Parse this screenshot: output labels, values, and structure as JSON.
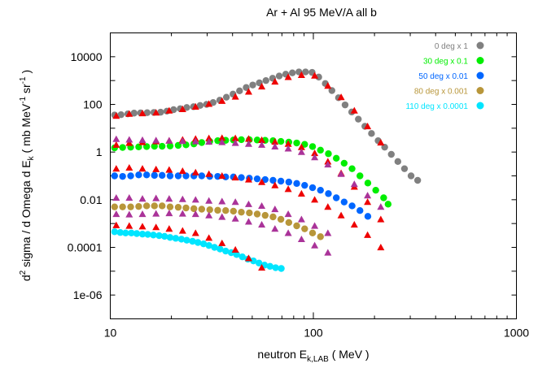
{
  "chart_data": {
    "type": "scatter",
    "title": "Ar + Al   95 MeV/A   all b",
    "xlabel": "neutron E_{k,LAB} ( MeV )",
    "ylabel": "d^2 sigma / d Omega d E_k  ( mb  MeV^-1 sr^-1 )",
    "x_scale": "log",
    "y_scale": "log",
    "xlim": [
      10,
      1000
    ],
    "ylim": [
      1e-07,
      100000
    ],
    "x_ticks": [
      "10",
      "100",
      "1000"
    ],
    "y_ticks": [
      "10000",
      "100",
      "1",
      "0.01",
      "0.0001",
      "1e-06"
    ],
    "legend_position": "top-right",
    "series": [
      {
        "name": "0 deg x 1",
        "color": "#808080",
        "marker": "circle",
        "points": [
          [
            10.5,
            36
          ],
          [
            11.3,
            37
          ],
          [
            12.2,
            40
          ],
          [
            13.1,
            43
          ],
          [
            14.1,
            44
          ],
          [
            15.2,
            45
          ],
          [
            16.4,
            46
          ],
          [
            17.7,
            47
          ],
          [
            19.0,
            52
          ],
          [
            20.5,
            60
          ],
          [
            22.1,
            66
          ],
          [
            23.8,
            74
          ],
          [
            25.7,
            80
          ],
          [
            27.7,
            90
          ],
          [
            29.8,
            100
          ],
          [
            32.1,
            120
          ],
          [
            34.6,
            150
          ],
          [
            37.3,
            200
          ],
          [
            40.2,
            270
          ],
          [
            43.3,
            370
          ],
          [
            46.7,
            510
          ],
          [
            50.3,
            650
          ],
          [
            54.2,
            800
          ],
          [
            58.4,
            1000
          ],
          [
            63.0,
            1250
          ],
          [
            67.9,
            1550
          ],
          [
            73.1,
            1850
          ],
          [
            78.8,
            2100
          ],
          [
            84.9,
            2300
          ],
          [
            91.5,
            2300
          ],
          [
            98.6,
            2200
          ],
          [
            106.3,
            1400
          ],
          [
            114.5,
            750
          ],
          [
            123.4,
            380
          ],
          [
            133.0,
            190
          ],
          [
            143.3,
            95
          ],
          [
            154.5,
            48
          ],
          [
            166.5,
            24
          ],
          [
            179.4,
            12
          ],
          [
            193.3,
            6
          ],
          [
            208.4,
            3
          ],
          [
            224.5,
            1.6
          ],
          [
            242.0,
            0.8
          ],
          [
            260.7,
            0.4
          ],
          [
            281.0,
            0.2
          ],
          [
            302.8,
            0.1
          ],
          [
            326.3,
            0.065
          ]
        ]
      },
      {
        "name": "30 deg x 0.1",
        "color": "#00ee00",
        "marker": "circle",
        "points": [
          [
            10.5,
            1.5
          ],
          [
            11.5,
            1.55
          ],
          [
            12.6,
            1.6
          ],
          [
            13.8,
            1.65
          ],
          [
            15.1,
            1.7
          ],
          [
            16.5,
            1.75
          ],
          [
            18.0,
            1.75
          ],
          [
            19.7,
            1.8
          ],
          [
            21.6,
            1.9
          ],
          [
            23.6,
            2.0
          ],
          [
            25.8,
            2.2
          ],
          [
            28.2,
            2.5
          ],
          [
            30.9,
            2.8
          ],
          [
            33.8,
            3.0
          ],
          [
            37.0,
            3.1
          ],
          [
            40.4,
            3.2
          ],
          [
            44.2,
            3.3
          ],
          [
            48.4,
            3.3
          ],
          [
            52.9,
            3.2
          ],
          [
            57.9,
            3.1
          ],
          [
            63.3,
            3.0
          ],
          [
            69.2,
            2.8
          ],
          [
            75.7,
            2.6
          ],
          [
            82.8,
            2.4
          ],
          [
            90.6,
            2.1
          ],
          [
            99.1,
            1.7
          ],
          [
            108.4,
            1.2
          ],
          [
            118.6,
            0.85
          ],
          [
            129.7,
            0.55
          ],
          [
            141.8,
            0.34
          ],
          [
            155.1,
            0.2
          ],
          [
            169.6,
            0.1
          ],
          [
            185.5,
            0.05
          ],
          [
            202.9,
            0.025
          ],
          [
            221.9,
            0.012
          ],
          [
            233.4,
            0.0065
          ]
        ]
      },
      {
        "name": "50 deg x 0.01",
        "color": "#0066ff",
        "marker": "circle",
        "points": [
          [
            10.5,
            0.1
          ],
          [
            11.5,
            0.095
          ],
          [
            12.6,
            0.1
          ],
          [
            13.8,
            0.11
          ],
          [
            15.1,
            0.11
          ],
          [
            16.5,
            0.105
          ],
          [
            18.0,
            0.105
          ],
          [
            19.7,
            0.1
          ],
          [
            21.6,
            0.1
          ],
          [
            23.6,
            0.1
          ],
          [
            25.8,
            0.1
          ],
          [
            28.2,
            0.1
          ],
          [
            30.9,
            0.095
          ],
          [
            33.8,
            0.095
          ],
          [
            37.0,
            0.09
          ],
          [
            40.4,
            0.09
          ],
          [
            44.2,
            0.085
          ],
          [
            48.4,
            0.08
          ],
          [
            52.9,
            0.075
          ],
          [
            57.9,
            0.07
          ],
          [
            63.3,
            0.065
          ],
          [
            69.2,
            0.06
          ],
          [
            75.7,
            0.055
          ],
          [
            82.8,
            0.048
          ],
          [
            90.6,
            0.04
          ],
          [
            99.1,
            0.032
          ],
          [
            108.4,
            0.025
          ],
          [
            118.6,
            0.018
          ],
          [
            129.7,
            0.012
          ],
          [
            141.8,
            0.008
          ],
          [
            155.1,
            0.0055
          ],
          [
            169.6,
            0.0035
          ],
          [
            185.5,
            0.002
          ]
        ]
      },
      {
        "name": "80 deg x 0.001",
        "color": "#b8963a",
        "marker": "circle",
        "points": [
          [
            10.5,
            0.005
          ],
          [
            11.5,
            0.005
          ],
          [
            12.6,
            0.005
          ],
          [
            13.8,
            0.0052
          ],
          [
            15.1,
            0.0055
          ],
          [
            16.5,
            0.0055
          ],
          [
            18.0,
            0.0055
          ],
          [
            19.7,
            0.005
          ],
          [
            21.6,
            0.0048
          ],
          [
            23.6,
            0.0045
          ],
          [
            25.8,
            0.0042
          ],
          [
            28.2,
            0.004
          ],
          [
            30.9,
            0.0038
          ],
          [
            33.8,
            0.0036
          ],
          [
            37.0,
            0.0035
          ],
          [
            40.4,
            0.0033
          ],
          [
            44.2,
            0.003
          ],
          [
            48.4,
            0.0028
          ],
          [
            52.9,
            0.0025
          ],
          [
            57.9,
            0.0022
          ],
          [
            63.3,
            0.0019
          ],
          [
            69.2,
            0.0015
          ],
          [
            75.7,
            0.0011
          ],
          [
            82.8,
            0.0008
          ],
          [
            90.6,
            0.0006
          ],
          [
            99.1,
            0.0004
          ],
          [
            108.4,
            0.00028
          ]
        ]
      },
      {
        "name": "110 deg x 0.0001",
        "color": "#00e5ff",
        "marker": "circle",
        "points": [
          [
            10.5,
            0.00045
          ],
          [
            11.2,
            0.00042
          ],
          [
            11.9,
            0.0004
          ],
          [
            12.7,
            0.0004
          ],
          [
            13.5,
            0.00038
          ],
          [
            14.4,
            0.00036
          ],
          [
            15.3,
            0.00035
          ],
          [
            16.3,
            0.00033
          ],
          [
            17.4,
            0.00031
          ],
          [
            18.5,
            0.00029
          ],
          [
            19.7,
            0.00026
          ],
          [
            21.0,
            0.00024
          ],
          [
            22.4,
            0.00022
          ],
          [
            23.8,
            0.0002
          ],
          [
            25.4,
            0.00018
          ],
          [
            27.0,
            0.00016
          ],
          [
            28.8,
            0.00014
          ],
          [
            30.6,
            0.00012
          ],
          [
            32.6,
            0.0001
          ],
          [
            34.7,
            8.5e-05
          ],
          [
            37.0,
            7e-05
          ],
          [
            39.4,
            6e-05
          ],
          [
            41.9,
            5e-05
          ],
          [
            44.7,
            4e-05
          ],
          [
            47.6,
            3.2e-05
          ],
          [
            50.7,
            2.7e-05
          ],
          [
            54.0,
            2.2e-05
          ],
          [
            57.5,
            1.8e-05
          ],
          [
            61.2,
            1.6e-05
          ],
          [
            65.2,
            1.4e-05
          ],
          [
            69.5,
            1.3e-05
          ]
        ]
      },
      {
        "name": "",
        "color": "#ee0000",
        "marker": "triangle",
        "points": [
          [
            10.7,
            33
          ],
          [
            12.4,
            40
          ],
          [
            14.4,
            42
          ],
          [
            16.8,
            45
          ],
          [
            19.5,
            55
          ],
          [
            22.7,
            63
          ],
          [
            26.3,
            80
          ],
          [
            30.6,
            105
          ],
          [
            35.5,
            140
          ],
          [
            41.3,
            210
          ],
          [
            48.0,
            340
          ],
          [
            55.7,
            560
          ],
          [
            64.7,
            900
          ],
          [
            75.2,
            1400
          ],
          [
            87.4,
            1700
          ],
          [
            101.5,
            1600
          ],
          [
            117.9,
            600
          ],
          [
            137.0,
            200
          ],
          [
            159.1,
            55
          ],
          [
            184.9,
            12
          ],
          [
            214.8,
            2.5
          ],
          [
            10.7,
            2.0
          ],
          [
            12.4,
            2.4
          ],
          [
            14.4,
            2.6
          ],
          [
            16.8,
            2.8
          ],
          [
            19.5,
            3.0
          ],
          [
            22.7,
            3.3
          ],
          [
            26.3,
            3.6
          ],
          [
            30.6,
            3.8
          ],
          [
            35.5,
            3.9
          ],
          [
            41.3,
            3.8
          ],
          [
            48.0,
            3.6
          ],
          [
            55.7,
            3.2
          ],
          [
            64.7,
            2.7
          ],
          [
            75.2,
            2.2
          ],
          [
            87.4,
            1.6
          ],
          [
            101.5,
            0.9
          ],
          [
            117.9,
            0.4
          ],
          [
            137.0,
            0.13
          ],
          [
            159.1,
            0.035
          ],
          [
            184.9,
            0.008
          ],
          [
            214.8,
            0.0015
          ],
          [
            10.7,
            0.2
          ],
          [
            12.4,
            0.22
          ],
          [
            14.4,
            0.2
          ],
          [
            16.8,
            0.19
          ],
          [
            19.5,
            0.18
          ],
          [
            22.7,
            0.16
          ],
          [
            26.3,
            0.14
          ],
          [
            30.6,
            0.12
          ],
          [
            35.5,
            0.1
          ],
          [
            41.3,
            0.085
          ],
          [
            48.0,
            0.07
          ],
          [
            55.7,
            0.055
          ],
          [
            64.7,
            0.04
          ],
          [
            75.2,
            0.028
          ],
          [
            87.4,
            0.018
          ],
          [
            101.5,
            0.01
          ],
          [
            117.9,
            0.005
          ],
          [
            137.0,
            0.0022
          ],
          [
            159.1,
            0.0009
          ],
          [
            184.9,
            0.00033
          ],
          [
            214.8,
            0.0001
          ],
          [
            10.7,
            0.00085
          ],
          [
            12.4,
            0.0008
          ],
          [
            14.4,
            0.00075
          ],
          [
            16.8,
            0.0007
          ],
          [
            19.5,
            0.0006
          ],
          [
            22.7,
            0.0005
          ],
          [
            26.3,
            0.0004
          ],
          [
            30.6,
            0.00025
          ],
          [
            35.5,
            0.00015
          ],
          [
            41.3,
            8e-05
          ],
          [
            48.0,
            3.5e-05
          ],
          [
            55.7,
            1.4e-05
          ]
        ]
      },
      {
        "name": "",
        "color": "#aa3399",
        "marker": "triangle",
        "points": [
          [
            10.7,
            3.5
          ],
          [
            12.4,
            3.3
          ],
          [
            14.4,
            3.2
          ],
          [
            16.8,
            3.1
          ],
          [
            19.5,
            3.0
          ],
          [
            22.7,
            2.9
          ],
          [
            26.3,
            2.8
          ],
          [
            30.6,
            2.7
          ],
          [
            35.5,
            2.6
          ],
          [
            41.3,
            2.4
          ],
          [
            48.0,
            2.2
          ],
          [
            55.7,
            2.0
          ],
          [
            64.7,
            1.7
          ],
          [
            75.2,
            1.4
          ],
          [
            87.4,
            1.0
          ],
          [
            101.5,
            0.6
          ],
          [
            117.9,
            0.3
          ],
          [
            137.0,
            0.12
          ],
          [
            159.1,
            0.045
          ],
          [
            184.9,
            0.015
          ],
          [
            214.8,
            0.005
          ],
          [
            10.7,
            0.012
          ],
          [
            12.4,
            0.012
          ],
          [
            14.4,
            0.011
          ],
          [
            16.8,
            0.0115
          ],
          [
            19.5,
            0.011
          ],
          [
            22.7,
            0.0105
          ],
          [
            26.3,
            0.01
          ],
          [
            30.6,
            0.009
          ],
          [
            35.5,
            0.0085
          ],
          [
            41.3,
            0.008
          ],
          [
            48.0,
            0.0065
          ],
          [
            55.7,
            0.0055
          ],
          [
            64.7,
            0.004
          ],
          [
            75.2,
            0.0025
          ],
          [
            87.4,
            0.0015
          ],
          [
            101.5,
            0.0008
          ],
          [
            117.9,
            0.0004
          ],
          [
            10.7,
            0.0025
          ],
          [
            12.4,
            0.0024
          ],
          [
            14.4,
            0.0025
          ],
          [
            16.8,
            0.0026
          ],
          [
            19.5,
            0.0027
          ],
          [
            22.7,
            0.0026
          ],
          [
            26.3,
            0.0025
          ],
          [
            30.6,
            0.0022
          ],
          [
            35.5,
            0.0019
          ],
          [
            41.3,
            0.0016
          ],
          [
            48.0,
            0.0012
          ],
          [
            55.7,
            0.0009
          ],
          [
            64.7,
            0.0006
          ],
          [
            75.2,
            0.0004
          ],
          [
            87.4,
            0.00022
          ],
          [
            101.5,
            0.00012
          ],
          [
            117.9,
            6e-05
          ]
        ]
      }
    ]
  }
}
